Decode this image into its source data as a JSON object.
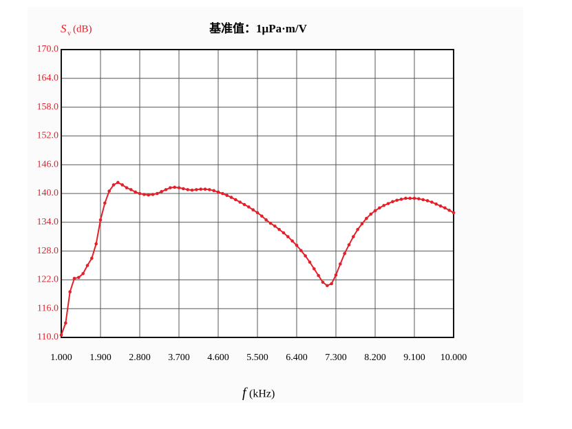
{
  "chart_data": {
    "type": "line",
    "title": "基准值：1μPa·m/V",
    "y_label_symbol": "S",
    "y_label_subscript": "v",
    "y_label_unit": "(dB)",
    "x_label_symbol": "f",
    "x_label_unit": "(kHz)",
    "xlim": [
      1,
      10
    ],
    "ylim": [
      110,
      170
    ],
    "xticks": [
      {
        "value": 1,
        "label": "1.000"
      },
      {
        "value": 1.9,
        "label": "1.900"
      },
      {
        "value": 2.8,
        "label": "2.800"
      },
      {
        "value": 3.7,
        "label": "3.700"
      },
      {
        "value": 4.6,
        "label": "4.600"
      },
      {
        "value": 5.5,
        "label": "5.500"
      },
      {
        "value": 6.4,
        "label": "6.400"
      },
      {
        "value": 7.3,
        "label": "7.300"
      },
      {
        "value": 8.2,
        "label": "8.200"
      },
      {
        "value": 9.1,
        "label": "9.100"
      },
      {
        "value": 10,
        "label": "10.000"
      }
    ],
    "yticks": [
      {
        "value": 110,
        "label": "110.0"
      },
      {
        "value": 116,
        "label": "116.0"
      },
      {
        "value": 122,
        "label": "122.0"
      },
      {
        "value": 128,
        "label": "128.0"
      },
      {
        "value": 134,
        "label": "134.0"
      },
      {
        "value": 140,
        "label": "140.0"
      },
      {
        "value": 146,
        "label": "146.0"
      },
      {
        "value": 152,
        "label": "152.0"
      },
      {
        "value": 158,
        "label": "158.0"
      },
      {
        "value": 164,
        "label": "164.0"
      },
      {
        "value": 170,
        "label": "170.0"
      }
    ],
    "grid": true,
    "x": [
      1.0,
      1.1,
      1.2,
      1.3,
      1.4,
      1.5,
      1.6,
      1.7,
      1.8,
      1.9,
      2.0,
      2.1,
      2.2,
      2.3,
      2.4,
      2.5,
      2.6,
      2.7,
      2.8,
      2.9,
      3.0,
      3.1,
      3.2,
      3.3,
      3.4,
      3.5,
      3.6,
      3.7,
      3.8,
      3.9,
      4.0,
      4.1,
      4.2,
      4.3,
      4.4,
      4.5,
      4.6,
      4.7,
      4.8,
      4.9,
      5.0,
      5.1,
      5.2,
      5.3,
      5.4,
      5.5,
      5.6,
      5.7,
      5.8,
      5.9,
      6.0,
      6.1,
      6.2,
      6.3,
      6.4,
      6.5,
      6.6,
      6.7,
      6.8,
      6.9,
      7.0,
      7.1,
      7.2,
      7.3,
      7.4,
      7.5,
      7.6,
      7.7,
      7.8,
      7.9,
      8.0,
      8.1,
      8.2,
      8.3,
      8.4,
      8.5,
      8.6,
      8.7,
      8.8,
      8.9,
      9.0,
      9.1,
      9.2,
      9.3,
      9.4,
      9.5,
      9.6,
      9.7,
      9.8,
      9.9,
      10.0
    ],
    "series": [
      {
        "color": "#e3202a",
        "values": [
          110.5,
          113,
          119.5,
          122.3,
          122.5,
          123.3,
          125,
          126.5,
          129.5,
          134.5,
          138,
          140.5,
          141.8,
          142.3,
          141.8,
          141.2,
          140.8,
          140.3,
          140,
          139.8,
          139.7,
          139.8,
          140,
          140.4,
          140.8,
          141.2,
          141.3,
          141.2,
          141,
          140.8,
          140.7,
          140.8,
          140.9,
          140.9,
          140.8,
          140.6,
          140.3,
          140,
          139.6,
          139.2,
          138.7,
          138.2,
          137.7,
          137.2,
          136.6,
          136,
          135.3,
          134.5,
          133.8,
          133.2,
          132.5,
          131.8,
          131,
          130.1,
          129.2,
          128.1,
          127,
          125.7,
          124.3,
          122.9,
          121.5,
          120.8,
          121.2,
          123,
          125.3,
          127.5,
          129.3,
          131,
          132.5,
          133.7,
          134.8,
          135.7,
          136.4,
          137,
          137.5,
          137.9,
          138.3,
          138.6,
          138.8,
          139,
          139,
          139,
          138.9,
          138.7,
          138.5,
          138.2,
          137.8,
          137.4,
          137,
          136.5,
          136
        ]
      }
    ]
  }
}
